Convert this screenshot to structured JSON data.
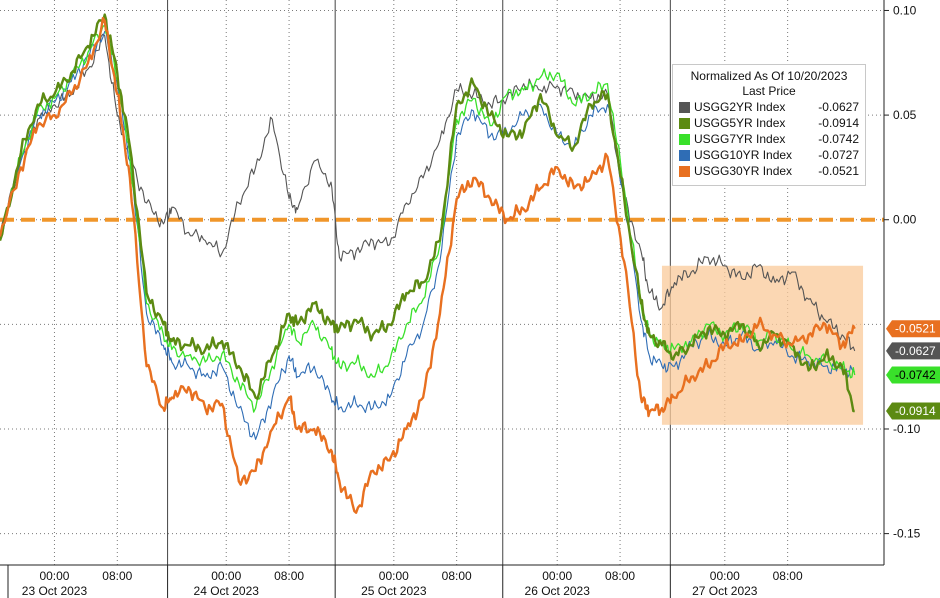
{
  "chart_data": {
    "type": "line",
    "title": "",
    "legend": {
      "header_line1": "Normalized As Of 10/20/2023",
      "header_line2": "Last Price",
      "placement": "top-right"
    },
    "y_axis": {
      "range": [
        -0.165,
        0.105
      ],
      "side": "right",
      "ticks": [
        "0.10",
        "0.05",
        "0.00",
        "-0.10",
        "-0.15"
      ],
      "tick_values": [
        0.1,
        0.05,
        0.0,
        -0.1,
        -0.15
      ],
      "gridlines": [
        0.1,
        0.05,
        0.0,
        -0.05,
        -0.1,
        -0.15
      ]
    },
    "x_axis": {
      "range": [
        -2.5,
        103
      ],
      "time_labels": [
        "00:00",
        "08:00",
        "00:00",
        "08:00",
        "00:00",
        "08:00",
        "00:00",
        "08:00",
        "00:00",
        "08:00"
      ],
      "time_positions": [
        4,
        11.5,
        24.5,
        32,
        44.5,
        52,
        64,
        71.5,
        84,
        91.5
      ],
      "day_labels": [
        "23 Oct 2023",
        "24 Oct 2023",
        "25 Oct 2023",
        "26 Oct 2023",
        "27 Oct 2023"
      ],
      "day_positions": [
        4,
        24.5,
        44.5,
        64,
        84
      ],
      "session_boundaries": [
        17.5,
        37.5,
        57.5,
        77.5
      ],
      "gridlines": [
        4,
        11.5,
        24.5,
        32,
        44.5,
        52,
        64,
        71.5,
        84,
        91.5
      ]
    },
    "zero_line": {
      "value": 0.0,
      "color": "#f0962a"
    },
    "highlight_region": {
      "x": [
        76.5,
        100.5
      ],
      "y": [
        -0.098,
        -0.022
      ],
      "color": "#f9c99a"
    },
    "series": [
      {
        "name": "USGG2YR Index",
        "last": "-0.0627",
        "last_value": -0.0627,
        "color": "#555555",
        "width": 1.1,
        "x": [
          -2.5,
          0,
          2,
          4,
          6,
          8,
          10,
          11.5,
          13,
          15,
          17,
          18,
          20,
          22,
          24,
          26,
          28,
          30,
          32,
          33,
          35,
          37,
          38,
          40,
          42,
          44,
          46,
          48,
          50,
          52,
          54,
          56,
          58,
          60,
          62,
          64,
          66,
          68,
          70,
          72,
          74,
          75,
          76.5,
          78,
          80,
          82,
          84,
          86,
          88,
          90,
          92,
          94,
          96,
          98,
          99.5
        ],
        "y": [
          -0.008,
          0.03,
          0.048,
          0.055,
          0.06,
          0.072,
          0.088,
          0.05,
          0.03,
          0.008,
          -0.002,
          0.006,
          -0.006,
          -0.01,
          -0.016,
          0.008,
          0.025,
          0.048,
          0.01,
          0.005,
          0.028,
          0.018,
          -0.018,
          -0.015,
          -0.01,
          -0.012,
          0.008,
          0.02,
          0.038,
          0.062,
          0.06,
          0.055,
          0.058,
          0.065,
          0.062,
          0.064,
          0.06,
          0.058,
          0.06,
          0.01,
          -0.015,
          -0.035,
          -0.042,
          -0.03,
          -0.025,
          -0.018,
          -0.022,
          -0.028,
          -0.022,
          -0.03,
          -0.025,
          -0.038,
          -0.048,
          -0.055,
          -0.0627
        ]
      },
      {
        "name": "USGG5YR Index",
        "last": "-0.0914",
        "last_value": -0.0914,
        "color": "#5c8a12",
        "width": 2.4,
        "x": [
          -2.5,
          0,
          2,
          4,
          6,
          8,
          10,
          11.5,
          13,
          15,
          17,
          18,
          20,
          22,
          24,
          26,
          28,
          30,
          32,
          33,
          35,
          37,
          38,
          40,
          42,
          44,
          46,
          48,
          50,
          52,
          54,
          56,
          58,
          60,
          62,
          64,
          66,
          68,
          70,
          72,
          74,
          75,
          76.5,
          78,
          80,
          82,
          84,
          86,
          88,
          90,
          92,
          94,
          96,
          98,
          99.5
        ],
        "y": [
          -0.01,
          0.032,
          0.055,
          0.06,
          0.07,
          0.083,
          0.098,
          0.07,
          0.035,
          -0.035,
          -0.05,
          -0.058,
          -0.06,
          -0.062,
          -0.058,
          -0.07,
          -0.085,
          -0.065,
          -0.045,
          -0.05,
          -0.04,
          -0.05,
          -0.052,
          -0.048,
          -0.055,
          -0.05,
          -0.035,
          -0.03,
          -0.01,
          0.055,
          0.065,
          0.05,
          0.04,
          0.042,
          0.06,
          0.04,
          0.035,
          0.055,
          0.06,
          0.01,
          -0.04,
          -0.055,
          -0.06,
          -0.065,
          -0.06,
          -0.052,
          -0.055,
          -0.05,
          -0.06,
          -0.055,
          -0.06,
          -0.072,
          -0.065,
          -0.07,
          -0.0914
        ]
      },
      {
        "name": "USGG7YR Index",
        "last": "-0.0742",
        "last_value": -0.0742,
        "color": "#39e02a",
        "width": 1.3,
        "x": [
          -2.5,
          0,
          2,
          4,
          6,
          8,
          10,
          11.5,
          13,
          15,
          17,
          18,
          20,
          22,
          24,
          26,
          28,
          30,
          32,
          33,
          35,
          37,
          38,
          40,
          42,
          44,
          46,
          48,
          50,
          52,
          54,
          56,
          58,
          60,
          62,
          64,
          66,
          68,
          70,
          72,
          74,
          75,
          76.5,
          78,
          80,
          82,
          84,
          86,
          88,
          90,
          92,
          94,
          96,
          98,
          99.5
        ],
        "y": [
          -0.008,
          0.03,
          0.052,
          0.058,
          0.068,
          0.08,
          0.093,
          0.068,
          0.03,
          -0.04,
          -0.055,
          -0.062,
          -0.065,
          -0.068,
          -0.064,
          -0.078,
          -0.09,
          -0.07,
          -0.05,
          -0.058,
          -0.05,
          -0.062,
          -0.07,
          -0.068,
          -0.075,
          -0.068,
          -0.05,
          -0.038,
          -0.012,
          0.048,
          0.058,
          0.045,
          0.06,
          0.062,
          0.068,
          0.07,
          0.055,
          0.06,
          0.065,
          0.015,
          -0.04,
          -0.055,
          -0.06,
          -0.062,
          -0.058,
          -0.05,
          -0.055,
          -0.05,
          -0.058,
          -0.055,
          -0.062,
          -0.065,
          -0.068,
          -0.07,
          -0.0742
        ]
      },
      {
        "name": "USGG10YR Index",
        "last": "-0.0727",
        "last_value": -0.0727,
        "color": "#2f6db5",
        "width": 1.1,
        "x": [
          -2.5,
          0,
          2,
          4,
          6,
          8,
          10,
          11.5,
          13,
          15,
          17,
          18,
          20,
          22,
          24,
          26,
          28,
          30,
          32,
          33,
          35,
          37,
          38,
          40,
          42,
          44,
          46,
          48,
          50,
          52,
          54,
          56,
          58,
          60,
          62,
          64,
          66,
          68,
          70,
          72,
          74,
          75,
          76.5,
          78,
          80,
          82,
          84,
          86,
          88,
          90,
          92,
          94,
          96,
          98,
          99.5
        ],
        "y": [
          -0.008,
          0.028,
          0.05,
          0.056,
          0.066,
          0.078,
          0.09,
          0.065,
          0.028,
          -0.045,
          -0.06,
          -0.068,
          -0.07,
          -0.075,
          -0.07,
          -0.09,
          -0.105,
          -0.085,
          -0.065,
          -0.075,
          -0.07,
          -0.085,
          -0.09,
          -0.088,
          -0.09,
          -0.085,
          -0.065,
          -0.05,
          -0.02,
          0.04,
          0.052,
          0.04,
          0.042,
          0.05,
          0.055,
          0.04,
          0.035,
          0.05,
          0.055,
          0.01,
          -0.048,
          -0.065,
          -0.07,
          -0.07,
          -0.06,
          -0.055,
          -0.06,
          -0.055,
          -0.062,
          -0.058,
          -0.065,
          -0.068,
          -0.07,
          -0.072,
          -0.0727
        ]
      },
      {
        "name": "USGG30YR Index",
        "last": "-0.0521",
        "last_value": -0.0521,
        "color": "#e87020",
        "width": 2.4,
        "x": [
          -2.5,
          0,
          2,
          4,
          6,
          8,
          10,
          11.5,
          13,
          15,
          17,
          18,
          20,
          22,
          24,
          26,
          28,
          30,
          32,
          33,
          35,
          37,
          38,
          40,
          42,
          44,
          46,
          48,
          50,
          52,
          54,
          56,
          58,
          60,
          62,
          64,
          66,
          68,
          70,
          72,
          74,
          75,
          76.5,
          78,
          80,
          82,
          84,
          86,
          88,
          90,
          92,
          94,
          96,
          98,
          99.5
        ],
        "y": [
          -0.008,
          0.025,
          0.045,
          0.05,
          0.06,
          0.075,
          0.095,
          0.06,
          0.02,
          -0.07,
          -0.09,
          -0.085,
          -0.08,
          -0.09,
          -0.088,
          -0.125,
          -0.12,
          -0.1,
          -0.085,
          -0.1,
          -0.1,
          -0.11,
          -0.125,
          -0.14,
          -0.12,
          -0.115,
          -0.1,
          -0.085,
          -0.045,
          0.01,
          0.02,
          0.01,
          0.0,
          0.005,
          0.015,
          0.025,
          0.015,
          0.02,
          0.03,
          -0.02,
          -0.085,
          -0.092,
          -0.09,
          -0.085,
          -0.075,
          -0.07,
          -0.06,
          -0.058,
          -0.05,
          -0.055,
          -0.06,
          -0.055,
          -0.05,
          -0.06,
          -0.0521
        ]
      }
    ],
    "last_price_tags": [
      {
        "series": "USGG30YR Index",
        "label": "-0.0521",
        "value": -0.0521,
        "bg": "#e87020",
        "fg": "#ffffff"
      },
      {
        "series": "USGG2YR Index",
        "label": "-0.0627",
        "value": -0.0627,
        "bg": "#555555",
        "fg": "#ffffff"
      },
      {
        "series": "USGG7YR Index",
        "label": "-0.0742",
        "value": -0.0742,
        "bg": "#39e02a",
        "fg": "#000000"
      },
      {
        "series": "USGG5YR Index",
        "label": "-0.0914",
        "value": -0.0914,
        "bg": "#5c8a12",
        "fg": "#ffffff"
      }
    ]
  }
}
